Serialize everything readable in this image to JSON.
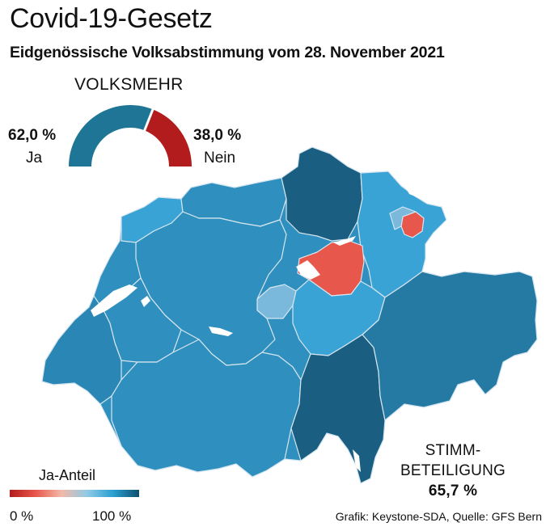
{
  "header": {
    "title": "Covid-19-Gesetz",
    "subtitle": "Eidgenössische Volksabstimmung vom 28. November 2021"
  },
  "volksmehr": {
    "label": "VOLKSMEHR",
    "yes_percent": "62,0 %",
    "yes_label": "Ja",
    "no_percent": "38,0 %",
    "no_label": "Nein",
    "yes_share": 62.0,
    "colors": {
      "yes": "#1f7596",
      "no": "#b31c1c"
    }
  },
  "turnout": {
    "line1": "STIMM-",
    "line2": "BETEILIGUNG",
    "value": "65,7 %"
  },
  "legend": {
    "title": "Ja-Anteil",
    "min_label": "0 %",
    "max_label": "100 %",
    "colors": [
      "#b31c1c",
      "#e8574c",
      "#f3b9a8",
      "#8ecae6",
      "#2a9fd1",
      "#0f4f6e"
    ]
  },
  "source": "Grafik: Keystone-SDA, Quelle: GFS Bern",
  "map_colors": {
    "mid_blue": "#2f8fbe",
    "light_blue": "#3aa3d6",
    "dark_blue": "#1a5f82",
    "teal": "#247aa3",
    "pale_blue": "#7ab8dc",
    "red": "#e8574c",
    "border": "#d6e6ef"
  }
}
